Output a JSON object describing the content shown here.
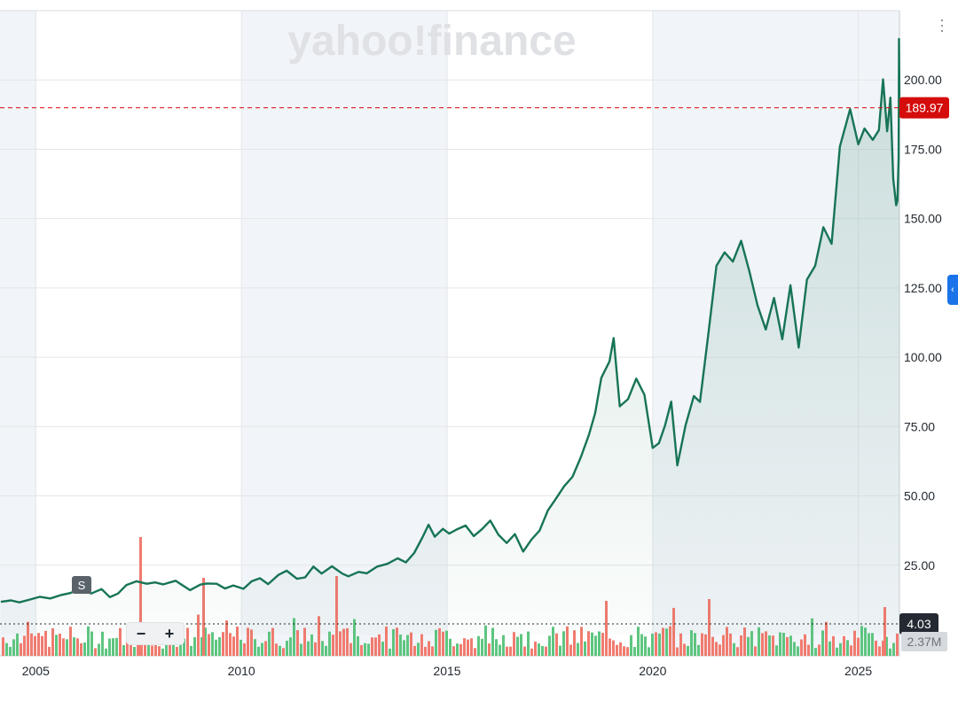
{
  "watermark": "yahoo!finance",
  "current_price_label": "189.97",
  "current_volume_label": "4.03",
  "volume_scale_label": "2.37M",
  "split_marker": "S",
  "zoom": {
    "minus": "−",
    "plus": "+"
  },
  "side_tab_label": "‹",
  "colors": {
    "price_line": "#177456",
    "price_fill": "#177456",
    "price_tag": "#d40c0c",
    "volume_up": "#5ec580",
    "volume_down": "#f07b6f",
    "grid": "#e4e6e9",
    "shade": "#f1f4f8",
    "volume_tag": "#232a31"
  },
  "chart_data": {
    "type": "line",
    "title": "",
    "xlabel": "",
    "ylabel": "",
    "x_ticks": [
      "2005",
      "2010",
      "2015",
      "2020",
      "2025"
    ],
    "y_ticks": [
      "25.00",
      "50.00",
      "75.00",
      "100.00",
      "125.00",
      "150.00",
      "175.00",
      "200.00"
    ],
    "ylim": [
      0,
      225
    ],
    "xlim": [
      2004.13,
      2026.0
    ],
    "grid": true,
    "current_price": 189.97,
    "series": [
      {
        "values": [
          [
            2004.15,
            11.8
          ],
          [
            2004.4,
            12.3
          ],
          [
            2004.6,
            11.6
          ],
          [
            2004.85,
            12.6
          ],
          [
            2005.1,
            13.6
          ],
          [
            2005.35,
            13.0
          ],
          [
            2005.6,
            14.2
          ],
          [
            2005.85,
            15.0
          ],
          [
            2006.1,
            16.8
          ],
          [
            2006.35,
            14.8
          ],
          [
            2006.6,
            16.4
          ],
          [
            2006.8,
            13.5
          ],
          [
            2007.0,
            14.8
          ],
          [
            2007.2,
            17.8
          ],
          [
            2007.45,
            19.2
          ],
          [
            2007.7,
            18.3
          ],
          [
            2007.9,
            18.8
          ],
          [
            2008.1,
            18.1
          ],
          [
            2008.4,
            19.4
          ],
          [
            2008.5,
            18.4
          ],
          [
            2008.75,
            16.0
          ],
          [
            2009.0,
            18.0
          ],
          [
            2009.15,
            18.4
          ],
          [
            2009.4,
            18.3
          ],
          [
            2009.6,
            16.6
          ],
          [
            2009.8,
            17.7
          ],
          [
            2010.05,
            16.5
          ],
          [
            2010.25,
            19.2
          ],
          [
            2010.45,
            20.3
          ],
          [
            2010.65,
            18.2
          ],
          [
            2010.9,
            21.5
          ],
          [
            2011.1,
            23.0
          ],
          [
            2011.35,
            20.1
          ],
          [
            2011.55,
            20.6
          ],
          [
            2011.75,
            24.5
          ],
          [
            2011.95,
            22.0
          ],
          [
            2012.2,
            24.6
          ],
          [
            2012.45,
            22.0
          ],
          [
            2012.6,
            21.0
          ],
          [
            2012.85,
            22.6
          ],
          [
            2013.05,
            22.1
          ],
          [
            2013.3,
            24.5
          ],
          [
            2013.55,
            25.5
          ],
          [
            2013.8,
            27.5
          ],
          [
            2014.0,
            26.0
          ],
          [
            2014.2,
            29.4
          ],
          [
            2014.4,
            35.0
          ],
          [
            2014.55,
            39.6
          ],
          [
            2014.7,
            35.3
          ],
          [
            2014.9,
            38.1
          ],
          [
            2015.05,
            36.4
          ],
          [
            2015.25,
            38.0
          ],
          [
            2015.45,
            39.3
          ],
          [
            2015.65,
            35.5
          ],
          [
            2015.85,
            38.0
          ],
          [
            2016.05,
            41.1
          ],
          [
            2016.25,
            36.0
          ],
          [
            2016.45,
            33.0
          ],
          [
            2016.65,
            36.2
          ],
          [
            2016.85,
            29.9
          ],
          [
            2017.05,
            34.2
          ],
          [
            2017.25,
            37.5
          ],
          [
            2017.45,
            44.7
          ],
          [
            2017.65,
            49.1
          ],
          [
            2017.85,
            53.5
          ],
          [
            2018.05,
            56.9
          ],
          [
            2018.25,
            63.9
          ],
          [
            2018.45,
            72.0
          ],
          [
            2018.6,
            79.8
          ],
          [
            2018.75,
            92.6
          ],
          [
            2018.95,
            98.5
          ],
          [
            2019.05,
            106.9
          ],
          [
            2019.2,
            82.3
          ],
          [
            2019.4,
            84.9
          ],
          [
            2019.6,
            92.3
          ],
          [
            2019.8,
            86.5
          ],
          [
            2020.0,
            67.3
          ],
          [
            2020.15,
            69.0
          ],
          [
            2020.3,
            75.4
          ],
          [
            2020.45,
            84.0
          ],
          [
            2020.6,
            61.0
          ],
          [
            2020.8,
            75.5
          ],
          [
            2021.0,
            86.0
          ],
          [
            2021.15,
            83.9
          ],
          [
            2021.35,
            108.0
          ],
          [
            2021.55,
            133.0
          ],
          [
            2021.75,
            137.8
          ],
          [
            2021.95,
            134.5
          ],
          [
            2022.15,
            142.0
          ],
          [
            2022.35,
            131.0
          ],
          [
            2022.55,
            118.7
          ],
          [
            2022.75,
            110.0
          ],
          [
            2022.95,
            121.4
          ],
          [
            2023.15,
            106.5
          ],
          [
            2023.35,
            126.0
          ],
          [
            2023.55,
            103.5
          ],
          [
            2023.75,
            128.0
          ],
          [
            2023.95,
            133.0
          ],
          [
            2024.15,
            146.9
          ],
          [
            2024.35,
            140.9
          ],
          [
            2024.55,
            175.9
          ],
          [
            2024.8,
            189.5
          ],
          [
            2025.0,
            176.8
          ],
          [
            2025.15,
            182.5
          ],
          [
            2025.35,
            178.4
          ],
          [
            2025.5,
            181.9
          ],
          [
            2025.6,
            200.2
          ],
          [
            2025.7,
            181.5
          ],
          [
            2025.78,
            193.6
          ],
          [
            2025.85,
            164.3
          ],
          [
            2025.92,
            154.8
          ],
          [
            2025.95,
            156.4
          ],
          [
            2025.98,
            172.0
          ],
          [
            2025.99,
            214.8
          ],
          [
            2025.995,
            202.0
          ],
          [
            2026.0,
            189.97
          ]
        ]
      }
    ],
    "volume": {
      "current": 4.03,
      "scale": "2.37M"
    }
  }
}
